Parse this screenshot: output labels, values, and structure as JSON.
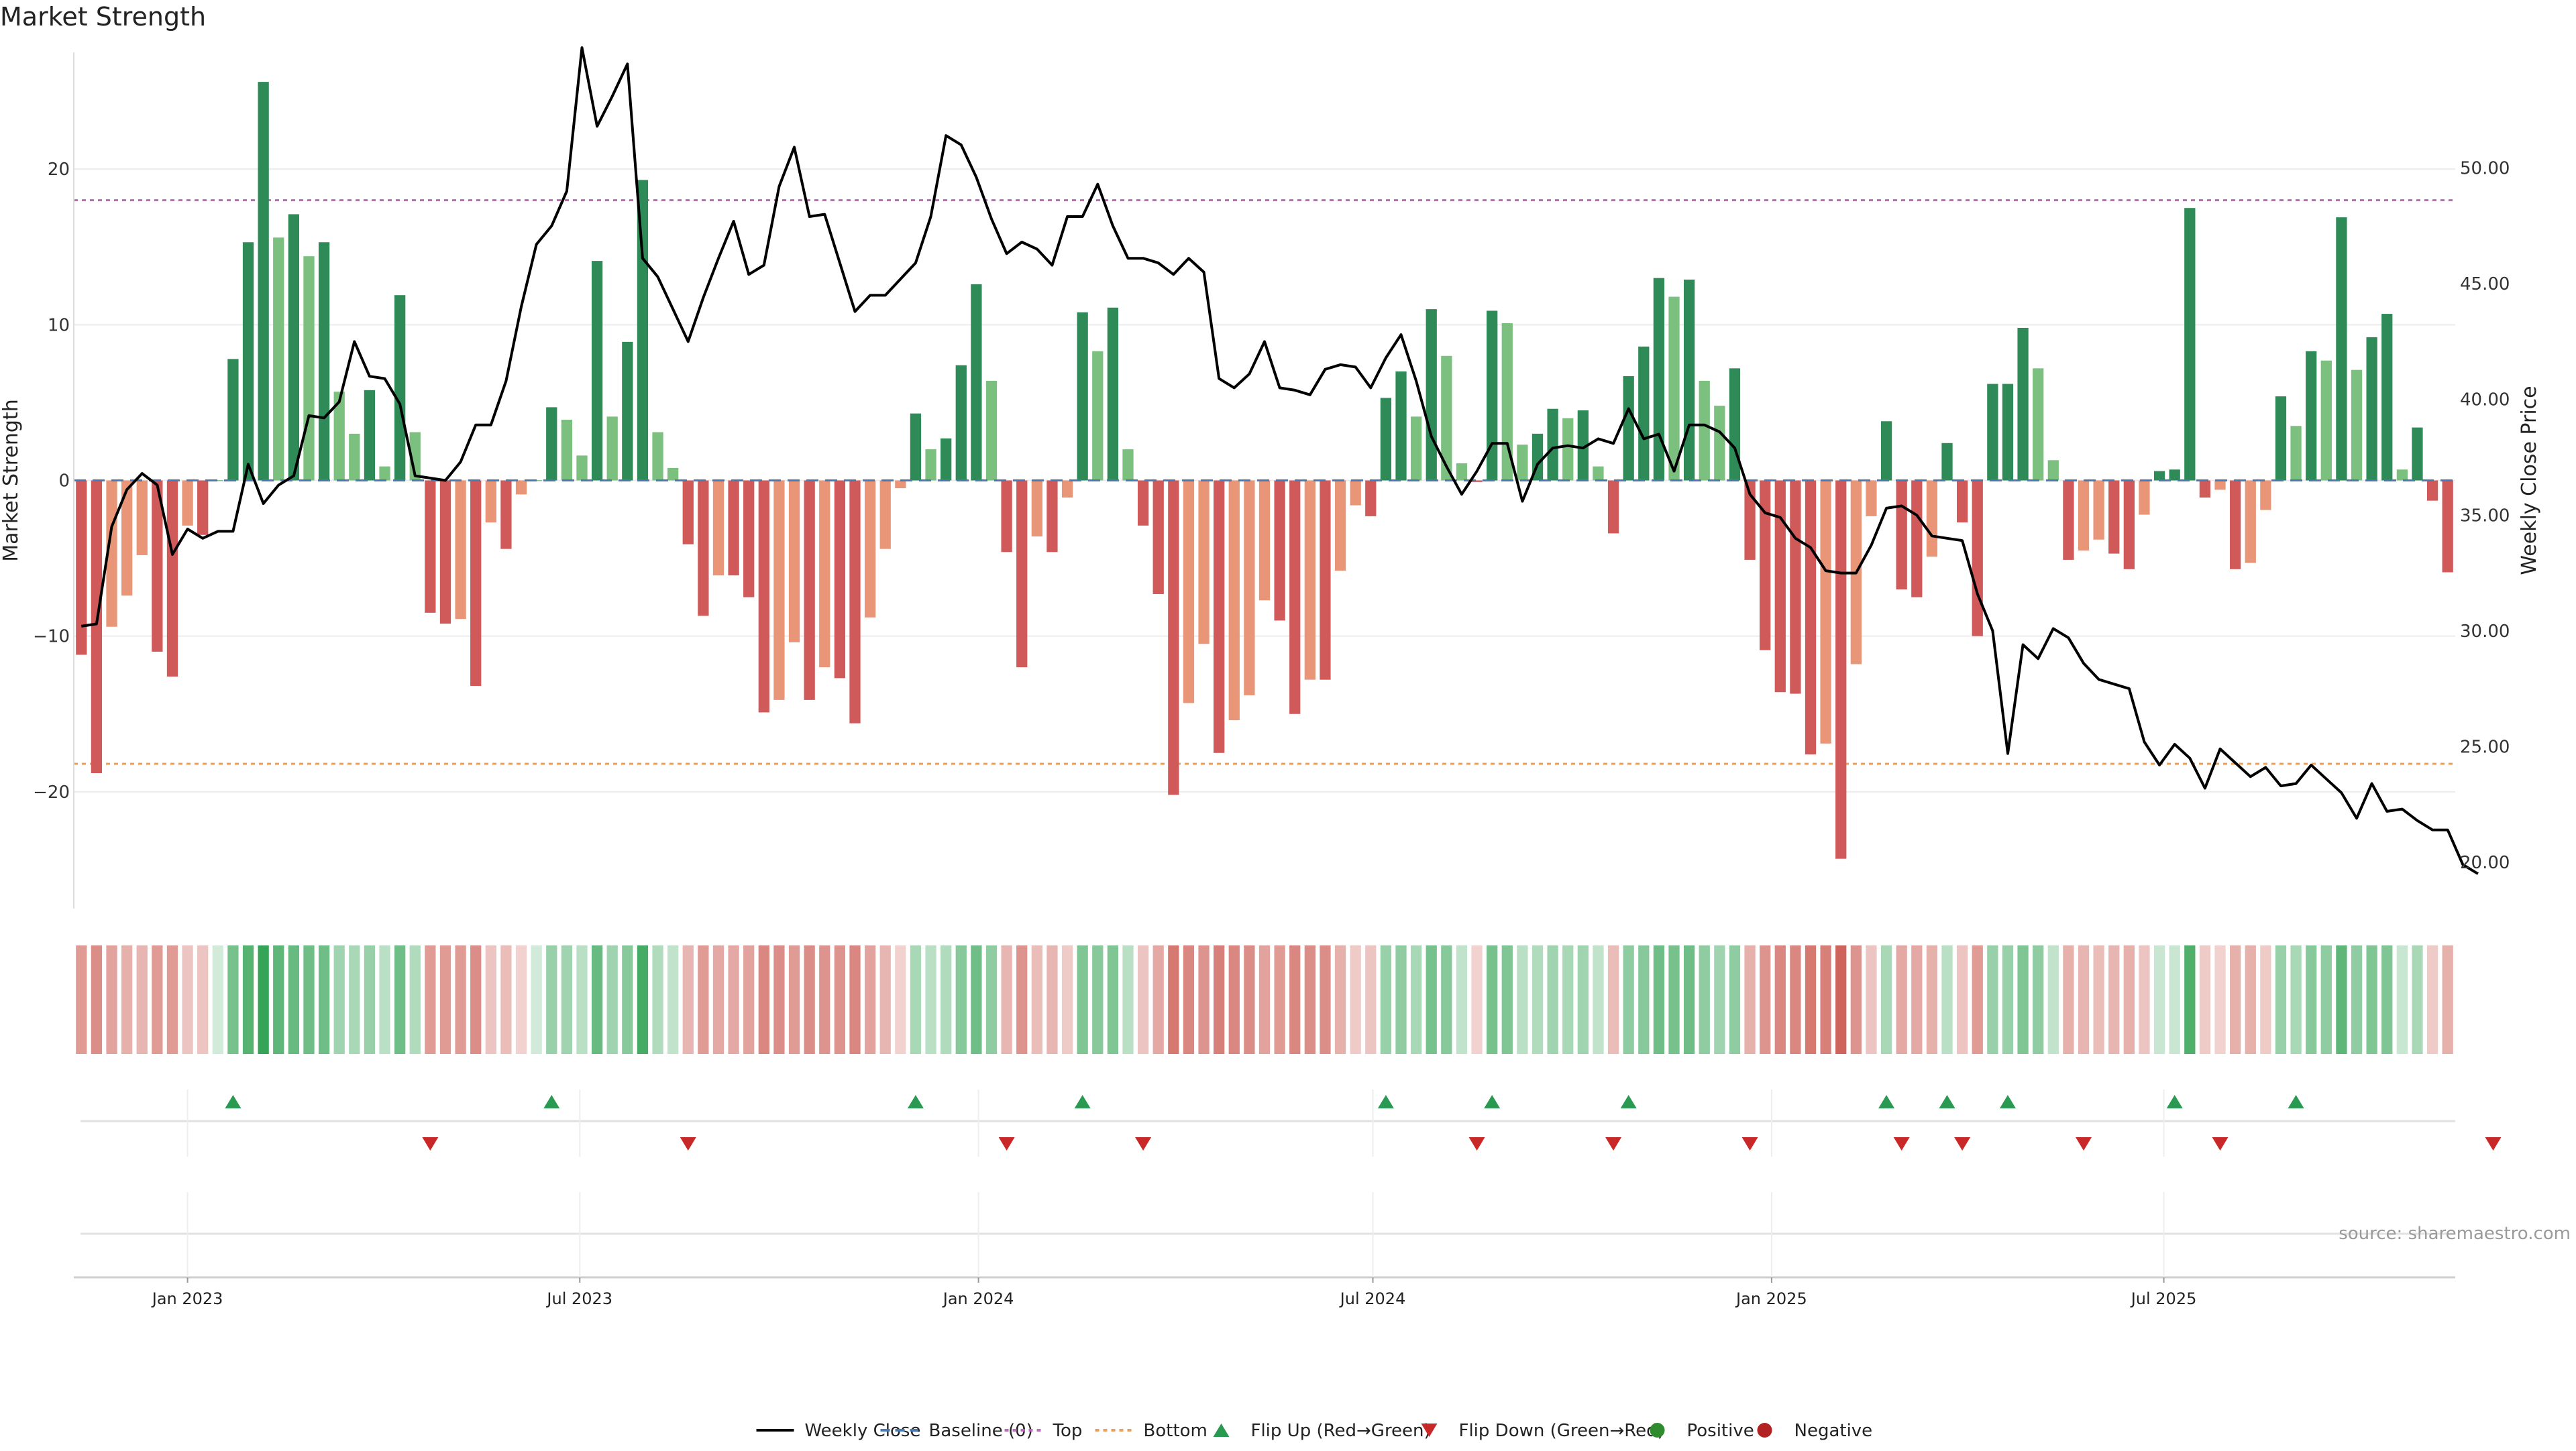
{
  "chart_data": {
    "type": "bar",
    "title": "Market Strength",
    "ylabel": "Market Strength",
    "y2label": "Weekly Close Price",
    "ylim": [
      -27.5,
      27.5
    ],
    "y2lim": [
      18.0,
      55.0
    ],
    "y_ticks": [
      -20,
      -10,
      0,
      10,
      20
    ],
    "y2_ticks": [
      "20.00",
      "25.00",
      "30.00",
      "35.00",
      "40.00",
      "45.00",
      "50.00"
    ],
    "x_tick_labels": [
      "Jan 2023",
      "Jul 2023",
      "Jan 2024",
      "Jul 2024",
      "Jan 2025",
      "Jul 2025"
    ],
    "x_ticks": [
      "2023-01-01",
      "2023-07-01",
      "2024-01-01",
      "2024-07-01",
      "2025-01-01",
      "2025-07-01"
    ],
    "first_week": "2022-11-13",
    "week_interval_days": 7,
    "grid": true,
    "legend_position": "bottom",
    "top_threshold": 18.0,
    "bottom_threshold": -18.2,
    "source_text": "source: sharemaestro.com",
    "legend": [
      "Weekly Close",
      "Baseline (0)",
      "Top",
      "Bottom",
      "Flip Up (Red→Green)",
      "Flip Down (Green→Red)",
      "Positive",
      "Negative"
    ],
    "colors": {
      "strong_up": "#2e8b57",
      "light_up": "#7cc07f",
      "strong_down": "#d05a5a",
      "light_down": "#e89578",
      "line": "#000000",
      "baseline": "#4a78b0",
      "top": "#b86cb8",
      "bottom": "#e8a060",
      "flip_up": "#2a9a52",
      "flip_down": "#c82828",
      "positive": "#2e8b2e",
      "negative": "#b22222"
    },
    "series": [
      {
        "name": "Market Strength",
        "values": [
          -11.2,
          -18.8,
          -9.4,
          -7.4,
          -4.8,
          -11,
          -12.6,
          -2.9,
          -3.5,
          0,
          7.8,
          15.3,
          25.6,
          15.6,
          17.1,
          14.4,
          15.3,
          5.7,
          3,
          5.8,
          0.9,
          11.9,
          3.1,
          -8.5,
          -9.2,
          -8.9,
          -13.2,
          -2.7,
          -4.4,
          -0.9,
          0,
          4.7,
          3.9,
          1.6,
          14.1,
          4.1,
          8.9,
          19.3,
          3.1,
          0.8,
          -4.1,
          -8.7,
          -6.1,
          -6.1,
          -7.5,
          -14.9,
          -14.1,
          -10.4,
          -14.1,
          -12,
          -12.7,
          -15.6,
          -8.8,
          -4.4,
          -0.5,
          4.3,
          2,
          2.7,
          7.4,
          12.6,
          6.4,
          -4.6,
          -12,
          -3.6,
          -4.6,
          -1.1,
          10.8,
          8.3,
          11.1,
          2,
          -2.9,
          -7.3,
          -20.2,
          -14.3,
          -10.5,
          -17.5,
          -15.4,
          -13.8,
          -7.7,
          -9,
          -15,
          -12.8,
          -12.8,
          -5.8,
          -1.6,
          -2.3,
          5.3,
          7,
          4.1,
          11,
          8,
          1.1,
          -0.1,
          10.9,
          10.1,
          2.3,
          3,
          4.6,
          4,
          4.5,
          0.9,
          -3.4,
          6.7,
          8.6,
          13,
          11.8,
          12.9,
          6.4,
          4.8,
          7.2,
          -5.1,
          -10.9,
          -13.6,
          -13.7,
          -17.6,
          -16.9,
          -24.3,
          -11.8,
          -2.3,
          3.8,
          -7,
          -7.5,
          -4.9,
          2.4,
          -2.7,
          -10,
          6.2,
          6.2,
          9.8,
          7.2,
          1.3,
          -5.1,
          -4.5,
          -3.8,
          -4.7,
          -5.7,
          -2.2,
          0.6,
          0.7,
          17.5,
          -1.1,
          -0.6,
          -5.7,
          -5.3,
          -1.9,
          5.4,
          3.5,
          8.3,
          7.7,
          16.9,
          7.1,
          9.2,
          10.7,
          0.7,
          3.4,
          -1.3,
          -5.9
        ]
      },
      {
        "name": "Weekly Close",
        "values": [
          30.2,
          30.3,
          34.5,
          36.1,
          36.8,
          36.3,
          33.3,
          34.4,
          34,
          34.3,
          34.3,
          37.2,
          35.5,
          36.3,
          36.7,
          39.3,
          39.2,
          39.9,
          42.5,
          41,
          40.9,
          39.8,
          36.7,
          36.6,
          36.5,
          37.3,
          38.9,
          38.9,
          40.8,
          44,
          46.7,
          47.5,
          49,
          55.2,
          51.8,
          53.1,
          54.5,
          46.1,
          45.3,
          43.9,
          42.5,
          44.4,
          46.1,
          47.7,
          45.4,
          45.8,
          49.2,
          50.9,
          47.9,
          48,
          45.9,
          43.8,
          44.5,
          44.5,
          45.2,
          45.9,
          47.9,
          51.4,
          51,
          49.6,
          47.8,
          46.3,
          46.8,
          46.5,
          45.8,
          47.9,
          47.9,
          49.3,
          47.5,
          46.1,
          46.1,
          45.9,
          45.4,
          46.1,
          45.5,
          40.9,
          40.5,
          41.1,
          42.5,
          40.5,
          40.4,
          40.2,
          41.3,
          41.5,
          41.4,
          40.5,
          41.8,
          42.8,
          40.8,
          38.4,
          37.1,
          35.9,
          36.9,
          38.1,
          38.1,
          35.6,
          37.2,
          37.9,
          38,
          37.9,
          38.3,
          38.1,
          39.6,
          38.3,
          38.5,
          36.9,
          38.9,
          38.9,
          38.6,
          37.9,
          35.9,
          35.1,
          34.9,
          34,
          33.6,
          32.6,
          32.5,
          32.5,
          33.7,
          35.3,
          35.4,
          35,
          34.1,
          34,
          33.9,
          31.6,
          30,
          24.7,
          29.4,
          28.8,
          30.1,
          29.7,
          28.6,
          27.9,
          27.7,
          27.5,
          25.2,
          24.2,
          25.1,
          24.5,
          23.2,
          24.9,
          24.3,
          23.7,
          24.1,
          23.3,
          23.4,
          24.2,
          23.6,
          23,
          21.9,
          23.4,
          22.2,
          22.3,
          21.8,
          21.4,
          21.4,
          19.9,
          19.5
        ]
      }
    ],
    "heat_strip": {
      "values": [
        -0.45,
        -0.55,
        -0.4,
        -0.3,
        -0.25,
        -0.45,
        -0.45,
        -0.15,
        -0.15,
        0,
        0.55,
        0.75,
        0.95,
        0.7,
        0.65,
        0.6,
        0.6,
        0.3,
        0.25,
        0.35,
        0.15,
        0.6,
        0.2,
        -0.45,
        -0.45,
        -0.45,
        -0.55,
        -0.15,
        -0.2,
        -0.05,
        0,
        0.35,
        0.3,
        0.15,
        0.65,
        0.3,
        0.45,
        0.85,
        0.2,
        0.1,
        -0.25,
        -0.45,
        -0.35,
        -0.35,
        -0.4,
        -0.6,
        -0.55,
        -0.45,
        -0.55,
        -0.5,
        -0.5,
        -0.6,
        -0.4,
        -0.25,
        -0.05,
        0.25,
        0.15,
        0.2,
        0.45,
        0.6,
        0.4,
        -0.25,
        -0.5,
        -0.2,
        -0.25,
        -0.1,
        0.5,
        0.45,
        0.5,
        0.15,
        -0.15,
        -0.35,
        -0.7,
        -0.6,
        -0.5,
        -0.65,
        -0.6,
        -0.55,
        -0.4,
        -0.45,
        -0.6,
        -0.55,
        -0.55,
        -0.3,
        -0.1,
        -0.15,
        0.35,
        0.4,
        0.25,
        0.55,
        0.45,
        0.1,
        -0.05,
        0.55,
        0.5,
        0.15,
        0.2,
        0.3,
        0.25,
        0.3,
        0.1,
        -0.2,
        0.4,
        0.45,
        0.6,
        0.55,
        0.6,
        0.4,
        0.3,
        0.4,
        -0.3,
        -0.5,
        -0.6,
        -0.6,
        -0.7,
        -0.65,
        -0.85,
        -0.5,
        -0.15,
        0.25,
        -0.35,
        -0.35,
        -0.3,
        0.15,
        -0.15,
        -0.45,
        0.35,
        0.35,
        0.5,
        0.4,
        0.1,
        -0.3,
        -0.25,
        -0.2,
        -0.25,
        -0.3,
        -0.15,
        0.05,
        0.05,
        0.8,
        -0.1,
        -0.05,
        -0.3,
        -0.3,
        -0.1,
        0.35,
        0.25,
        0.45,
        0.4,
        0.7,
        0.4,
        0.5,
        0.5,
        0.05,
        0.25,
        -0.1,
        -0.3
      ]
    },
    "flip_up_weeks": [
      10,
      31,
      55,
      66,
      86,
      93,
      102,
      119,
      123,
      127,
      138,
      146
    ],
    "flip_down_weeks": [
      23,
      40,
      61,
      70,
      92,
      101,
      110,
      120,
      124,
      132,
      141,
      159
    ]
  }
}
